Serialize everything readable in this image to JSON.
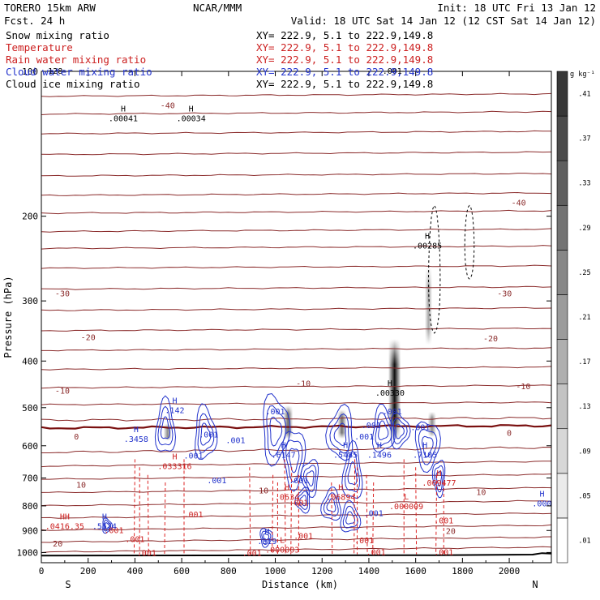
{
  "header": {
    "model": "TORERO  15km ARW",
    "org": "NCAR/MMM",
    "init": "Init: 18 UTC Fri 13 Jan 12",
    "fcst": "Fcst.   24 h",
    "valid": "Valid: 18 UTC Sat 14 Jan 12 (12 CST Sat 14 Jan 12)"
  },
  "fields": [
    {
      "name": "Snow mixing ratio",
      "xy": "XY= 222.9,  5.1 to 222.9,149.8",
      "color": "#000000"
    },
    {
      "name": "Temperature",
      "xy": "XY= 222.9,  5.1 to 222.9,149.8",
      "color": "#cc2020"
    },
    {
      "name": "Rain water mixing ratio",
      "xy": "XY= 222.9,  5.1 to 222.9,149.8",
      "color": "#cc2020"
    },
    {
      "name": "Cloud water mixing ratio",
      "xy": "XY= 222.9,  5.1 to 222.9,149.8",
      "color": "#2233cc"
    },
    {
      "name": "Cloud ice mixing ratio",
      "xy": "XY= 222.9,  5.1 to 222.9,149.8",
      "color": "#000000"
    }
  ],
  "chart_data": {
    "type": "cross-section",
    "xlabel": "Distance (km)",
    "ylabel": "Pressure (hPa)",
    "xlim": [
      0,
      2180
    ],
    "ylim": [
      1050,
      100
    ],
    "y_scale": "log",
    "x_ticks": [
      0,
      200,
      400,
      600,
      800,
      1000,
      1200,
      1400,
      1600,
      1800,
      2000
    ],
    "y_ticks": [
      100,
      200,
      300,
      400,
      500,
      600,
      700,
      800,
      900,
      1000
    ],
    "x_end_labels": {
      "left": "S",
      "right": "N"
    },
    "colorbar": {
      "unit": "g kg⁻¹",
      "levels": [
        0.01,
        0.05,
        0.09,
        0.13,
        0.17,
        0.21,
        0.25,
        0.29,
        0.33,
        0.37,
        0.41
      ],
      "labels": [
        ".01",
        ".05",
        ".09",
        ".13",
        ".17",
        ".21",
        ".25",
        ".29",
        ".33",
        ".37",
        ".41"
      ]
    },
    "temperature_contours": [
      {
        "label": "-40",
        "x": 2040,
        "p": 188
      },
      {
        "label": "-40",
        "x": 540,
        "p": 118
      },
      {
        "label": "-30",
        "x": 90,
        "p": 290
      },
      {
        "label": "-30",
        "x": 1980,
        "p": 290
      },
      {
        "label": "-20",
        "x": 200,
        "p": 358
      },
      {
        "label": "-20",
        "x": 1920,
        "p": 360
      },
      {
        "label": "-10",
        "x": 90,
        "p": 462
      },
      {
        "label": "-10",
        "x": 1120,
        "p": 446
      },
      {
        "label": "-10",
        "x": 2060,
        "p": 452
      },
      {
        "label": "0",
        "x": 150,
        "p": 575
      },
      {
        "label": "0",
        "x": 2000,
        "p": 565
      },
      {
        "label": "10",
        "x": 170,
        "p": 725
      },
      {
        "label": "10",
        "x": 950,
        "p": 745
      },
      {
        "label": "10",
        "x": 1880,
        "p": 750
      },
      {
        "label": "20",
        "x": 70,
        "p": 960
      },
      {
        "label": "20",
        "x": 1750,
        "p": 905
      }
    ],
    "temperature_levels_p": [
      112,
      122,
      134,
      148,
      164,
      180,
      196,
      214,
      232,
      255,
      282,
      312,
      344,
      378,
      414,
      452,
      490,
      528,
      548,
      612,
      654,
      696,
      742,
      790,
      838,
      888,
      940,
      986
    ],
    "ground_p": 1015,
    "snow_columns": [
      {
        "x": 1510,
        "p_top": 360,
        "p_bottom": 585,
        "max": 0.41
      },
      {
        "x": 1055,
        "p_top": 495,
        "p_bottom": 580,
        "max": 0.2
      },
      {
        "x": 1285,
        "p_top": 505,
        "p_bottom": 580,
        "max": 0.18
      },
      {
        "x": 540,
        "p_top": 540,
        "p_bottom": 585,
        "max": 0.12
      },
      {
        "x": 1670,
        "p_top": 510,
        "p_bottom": 575,
        "max": 0.12
      },
      {
        "x": 1655,
        "p_top": 255,
        "p_bottom": 370,
        "max": 0.06
      }
    ],
    "max_min_labels": [
      {
        "kind": "H",
        "value": ".142",
        "x": 570,
        "p": 505,
        "color": "#2233cc"
      },
      {
        "kind": "H",
        "value": ".3458",
        "x": 405,
        "p": 580,
        "color": "#2233cc"
      },
      {
        "kind": "H",
        "value": ".6147",
        "x": 1035,
        "p": 625,
        "color": "#2233cc"
      },
      {
        "kind": "H",
        "value": ".5485",
        "x": 1300,
        "p": 625,
        "color": "#2233cc"
      },
      {
        "kind": "H",
        "value": ".1496",
        "x": 1445,
        "p": 625,
        "color": "#2233cc"
      },
      {
        "kind": "H",
        "value": ".7105",
        "x": 1640,
        "p": 625,
        "color": "#2233cc"
      },
      {
        "kind": "H",
        "value": ".5574",
        "x": 270,
        "p": 880,
        "color": "#2233cc"
      },
      {
        "kind": "H",
        "value": ".319",
        "x": 965,
        "p": 945,
        "color": "#2233cc"
      },
      {
        "kind": "H",
        "value": ".000",
        "x": 2140,
        "p": 790,
        "color": "#2233cc"
      },
      {
        "kind": "H",
        "value": ".00285",
        "x": 1650,
        "p": 230,
        "color": "#000000"
      },
      {
        "kind": "H",
        "value": ".00330",
        "x": 1490,
        "p": 465,
        "color": "#000000"
      },
      {
        "kind": "H",
        "value": ".00034",
        "x": 640,
        "p": 125,
        "color": "#000000"
      },
      {
        "kind": "H",
        "value": ".00041",
        "x": 350,
        "p": 125,
        "color": "#000000"
      },
      {
        "kind": "H",
        "value": ".033316",
        "x": 570,
        "p": 660,
        "color": "#cc2020"
      },
      {
        "kind": "H",
        "value": ".0634",
        "x": 1050,
        "p": 765,
        "color": "#cc2020"
      },
      {
        "kind": "H",
        "value": ".06894",
        "x": 1280,
        "p": 765,
        "color": "#cc2020"
      },
      {
        "kind": "H",
        "value": ".069477",
        "x": 1700,
        "p": 715,
        "color": "#cc2020"
      },
      {
        "kind": "L",
        "value": ".000009",
        "x": 1560,
        "p": 800,
        "color": "#cc2020"
      },
      {
        "kind": "L",
        "value": ".000003",
        "x": 1030,
        "p": 985,
        "color": "#cc2020"
      },
      {
        "kind": "HH",
        "value": ".0416.35",
        "x": 100,
        "p": 880,
        "color": "#cc2020"
      }
    ],
    "contour_value_labels": [
      {
        "value": ".001",
        "x": 715,
        "p": 570,
        "color": "#2233cc"
      },
      {
        "value": ".001",
        "x": 1000,
        "p": 510,
        "color": "#2233cc"
      },
      {
        "value": ".001",
        "x": 830,
        "p": 585,
        "color": "#2233cc"
      },
      {
        "value": ".001",
        "x": 650,
        "p": 630,
        "color": "#2233cc"
      },
      {
        "value": ".001",
        "x": 1380,
        "p": 575,
        "color": "#2233cc"
      },
      {
        "value": ".001",
        "x": 1410,
        "p": 545,
        "color": "#2233cc"
      },
      {
        "value": ".001",
        "x": 1500,
        "p": 510,
        "color": "#2233cc"
      },
      {
        "value": ".001",
        "x": 1620,
        "p": 550,
        "color": "#2233cc"
      },
      {
        "value": ".001",
        "x": 750,
        "p": 710,
        "color": "#2233cc"
      },
      {
        "value": ".001",
        "x": 1100,
        "p": 710,
        "color": "#2233cc"
      },
      {
        "value": ".001",
        "x": 1420,
        "p": 830,
        "color": "#2233cc"
      },
      {
        "value": ".001",
        "x": 650,
        "p": 835,
        "color": "#cc2020"
      },
      {
        "value": ".001",
        "x": 1100,
        "p": 790,
        "color": "#cc2020"
      },
      {
        "value": ".001",
        "x": 1720,
        "p": 860,
        "color": "#cc2020"
      },
      {
        "value": ".001",
        "x": 310,
        "p": 900,
        "color": "#cc2020"
      },
      {
        "value": ".001",
        "x": 400,
        "p": 940,
        "color": "#cc2020"
      },
      {
        "value": ".001",
        "x": 1120,
        "p": 925,
        "color": "#cc2020"
      },
      {
        "value": ".001",
        "x": 1380,
        "p": 945,
        "color": "#cc2020"
      },
      {
        "value": ".001",
        "x": 450,
        "p": 1005,
        "color": "#cc2020"
      },
      {
        "value": ".001",
        "x": 900,
        "p": 1005,
        "color": "#cc2020"
      },
      {
        "value": ".001",
        "x": 1430,
        "p": 1000,
        "color": "#cc2020"
      },
      {
        "value": ".001",
        "x": 1720,
        "p": 1000,
        "color": "#cc2020"
      },
      {
        "value": ".001",
        "x": 1500,
        "p": 100,
        "color": "#000000"
      },
      {
        "value": "128",
        "x": 60,
        "p": 100,
        "color": "#000000"
      }
    ]
  }
}
